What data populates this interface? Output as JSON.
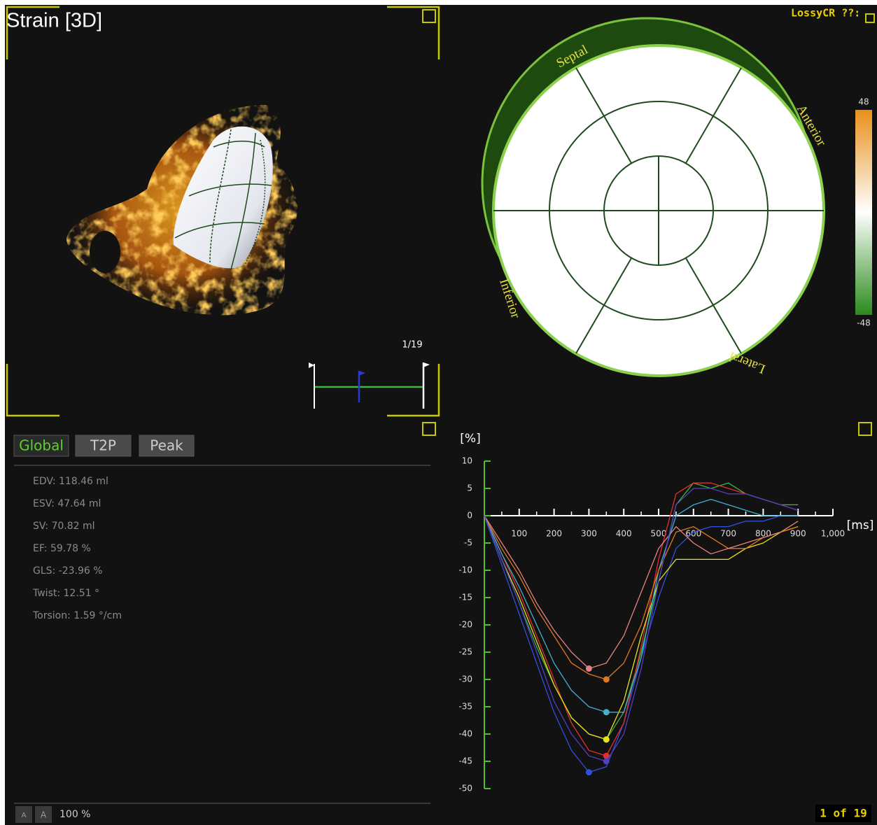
{
  "viewer": {
    "title": "Strain [3D]",
    "frame": "1/19"
  },
  "status": {
    "compression": "LossyCR ??:",
    "frame_count": "1 of 19"
  },
  "bullseye": {
    "labels": [
      "Septal",
      "Anterior",
      "Lateral",
      "Inferior"
    ]
  },
  "colorbar": {
    "max": 48,
    "min": -48
  },
  "tabs": [
    "Global",
    "T2P",
    "Peak"
  ],
  "stats": [
    "EDV: 118.46 ml",
    "ESV: 47.64 ml",
    "SV: 70.82 ml",
    "EF: 59.78 %",
    "GLS: -23.96 %",
    "Twist: 12.51 °",
    "Torsion: 1.59 °/cm"
  ],
  "toolbar": {
    "buttons": [
      "A",
      "A"
    ],
    "zoom": "100 %"
  },
  "chart_data": {
    "type": "line",
    "y_label": "[%]",
    "x_label": "[ms]",
    "xlim": [
      0,
      1000
    ],
    "ylim": [
      -50,
      10
    ],
    "xticks": [
      100,
      200,
      300,
      400,
      500,
      600,
      700,
      800,
      900,
      {
        "value": 1000,
        "label": "1,000"
      }
    ],
    "yticks": [
      10,
      5,
      0,
      -5,
      -10,
      -15,
      -20,
      -25,
      -30,
      -35,
      -40,
      -45,
      -50
    ],
    "x": [
      0,
      50,
      100,
      150,
      200,
      250,
      300,
      350,
      400,
      450,
      500,
      550,
      600,
      650,
      700,
      750,
      800,
      850,
      900
    ],
    "series": [
      {
        "color": "#3cb83c",
        "values": [
          0,
          -8,
          -16,
          -24,
          -31,
          -37,
          -40,
          -41,
          -36,
          -25,
          -12,
          2,
          6,
          5,
          6,
          4,
          3,
          2,
          2
        ]
      },
      {
        "color": "#3050e0",
        "values": [
          0,
          -9,
          -18,
          -27,
          -36,
          -43,
          -47,
          -46,
          -38,
          -26,
          -15,
          -6,
          -3,
          -2,
          -2,
          -1,
          -1,
          0,
          0
        ]
      },
      {
        "color": "#e03030",
        "values": [
          0,
          -7,
          -14,
          -22,
          -30,
          -38,
          -43,
          -44,
          -38,
          -24,
          -8,
          4,
          6,
          6,
          5,
          4,
          3,
          2,
          1
        ]
      },
      {
        "color": "#e8e020",
        "values": [
          0,
          -8,
          -15,
          -23,
          -31,
          -37,
          -40,
          -41,
          -34,
          -22,
          -12,
          -8,
          -8,
          -8,
          -8,
          -6,
          -5,
          -3,
          -2
        ]
      },
      {
        "color": "#40b0d0",
        "values": [
          0,
          -7,
          -13,
          -20,
          -27,
          -32,
          -35,
          -36,
          -36,
          -26,
          -10,
          0,
          2,
          3,
          2,
          1,
          0,
          0,
          0
        ]
      },
      {
        "color": "#e07820",
        "values": [
          0,
          -6,
          -11,
          -17,
          -22,
          -27,
          -29,
          -30,
          -27,
          -20,
          -10,
          -3,
          -2,
          -4,
          -6,
          -6,
          -4,
          -3,
          -2
        ]
      },
      {
        "color": "#e88080",
        "values": [
          0,
          -5,
          -10,
          -16,
          -21,
          -25,
          -28,
          -27,
          -22,
          -14,
          -6,
          -2,
          -5,
          -7,
          -6,
          -5,
          -4,
          -3,
          -1
        ]
      },
      {
        "color": "#5040c0",
        "values": [
          0,
          -8,
          -16,
          -25,
          -34,
          -40,
          -44,
          -45,
          -40,
          -28,
          -12,
          2,
          5,
          5,
          4,
          4,
          3,
          2,
          1
        ]
      }
    ]
  }
}
